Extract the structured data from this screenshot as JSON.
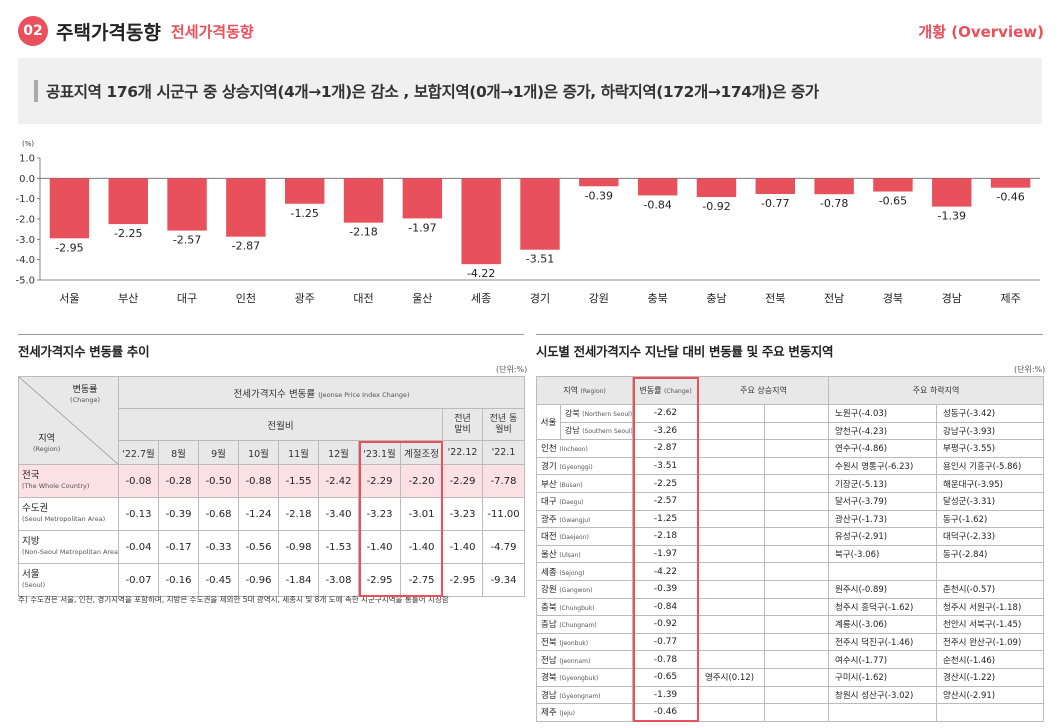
{
  "header": {
    "badge": "02",
    "title": "주택가격동향",
    "subtitle": "전세가격동향",
    "right": "개황 (Overview)"
  },
  "banner": {
    "text": "공표지역 176개 시군구 중 상승지역(4개→1개)은 감소 , 보합지역(0개→1개)은 증가, 하락지역(172개→174개)은 증가"
  },
  "chart_data": {
    "type": "bar",
    "ylabel": "(%)",
    "ylim": [
      -5.0,
      1.0
    ],
    "yticks": [
      "1.0",
      "0.0",
      "-1.0",
      "-2.0",
      "-3.0",
      "-4.0",
      "-5.0"
    ],
    "categories": [
      "서울",
      "부산",
      "대구",
      "인천",
      "광주",
      "대전",
      "울산",
      "세종",
      "경기",
      "강원",
      "충북",
      "충남",
      "전북",
      "전남",
      "경북",
      "경남",
      "제주"
    ],
    "values": [
      -2.95,
      -2.25,
      -2.57,
      -2.87,
      -1.25,
      -2.18,
      -1.97,
      -4.22,
      -3.51,
      -0.39,
      -0.84,
      -0.92,
      -0.77,
      -0.78,
      -0.65,
      -1.39,
      -0.46
    ],
    "labels": [
      "-2.95",
      "-2.25",
      "-2.57",
      "-2.87",
      "-1.25",
      "-2.18",
      "-1.97",
      "-4.22",
      "-3.51",
      "-0.39",
      "-0.84",
      "-0.92",
      "-0.77",
      "-0.78",
      "-0.65",
      "-1.39",
      "-0.46"
    ],
    "bar_color": "#e8505b",
    "grid": false
  },
  "left": {
    "title": "전세가격지수 변동률 추이",
    "unit": "(단위:%)",
    "corner_top": "변동률",
    "corner_top_en": "(Change)",
    "corner_bottom": "지역",
    "corner_bottom_en": "(Region)",
    "header_main": "전세가격지수 변동률",
    "header_main_en": "(Jeonse Price Index Change)",
    "header_prev_month": "전월비",
    "header_prev_year_end": "전년 말비",
    "header_yoy": "전년 동월비",
    "columns": [
      "'22.7월",
      "8월",
      "9월",
      "10월",
      "11월",
      "12월",
      "'23.1월",
      "계절조정",
      "'22.12",
      "'22.1"
    ],
    "rows": [
      {
        "name": "전국",
        "en": "(The Whole Country)",
        "values": [
          "-0.08",
          "-0.28",
          "-0.50",
          "-0.88",
          "-1.55",
          "-2.42",
          "-2.29",
          "-2.20",
          "-2.29",
          "-7.78"
        ]
      },
      {
        "name": "수도권",
        "en": "(Seoul Metropolitan Area)",
        "values": [
          "-0.13",
          "-0.39",
          "-0.68",
          "-1.24",
          "-2.18",
          "-3.40",
          "-3.23",
          "-3.01",
          "-3.23",
          "-11.00"
        ]
      },
      {
        "name": "지방",
        "en": "(Non-Seoul Metropolitan Area)",
        "values": [
          "-0.04",
          "-0.17",
          "-0.33",
          "-0.56",
          "-0.98",
          "-1.53",
          "-1.40",
          "-1.40",
          "-1.40",
          "-4.79"
        ]
      },
      {
        "name": "서울",
        "en": "(Seoul)",
        "values": [
          "-0.07",
          "-0.16",
          "-0.45",
          "-0.96",
          "-1.84",
          "-3.08",
          "-2.95",
          "-2.75",
          "-2.95",
          "-9.34"
        ]
      }
    ],
    "note": "주) 수도권은 서울, 인천, 경기지역을 포함하며, 지방은 수도권을 제외한 5대 광역시, 세종시 및 8개 도에 속한 시군구지역을 통틀어 지칭함"
  },
  "right": {
    "title": "시도별 전세가격지수 지난달 대비 변동률 및 주요 변동지역",
    "unit": "(단위:%)",
    "h_region": "지역",
    "h_region_en": "(Region)",
    "h_change": "변동률",
    "h_change_en": "(Change)",
    "h_up": "주요 상승지역",
    "h_down": "주요 하락지역",
    "seoul_label": "서울",
    "rows": [
      {
        "name": "강북",
        "en": "(Northern Seoul)",
        "change": "-2.62",
        "up1": "",
        "up2": "",
        "down1": "노원구(-4.03)",
        "down2": "성동구(-3.42)"
      },
      {
        "name": "강남",
        "en": "(Southern Seoul)",
        "change": "-3.26",
        "up1": "",
        "up2": "",
        "down1": "양천구(-4.23)",
        "down2": "강남구(-3.93)"
      },
      {
        "name": "인천",
        "en": "(Incheon)",
        "change": "-2.87",
        "up1": "",
        "up2": "",
        "down1": "연수구(-4.86)",
        "down2": "부평구(-3.55)"
      },
      {
        "name": "경기",
        "en": "(Gyeonggi)",
        "change": "-3.51",
        "up1": "",
        "up2": "",
        "down1": "수원시 영통구(-6.23)",
        "down2": "용인시 기흥구(-5.86)"
      },
      {
        "name": "부산",
        "en": "(Busan)",
        "change": "-2.25",
        "up1": "",
        "up2": "",
        "down1": "기장군(-5.13)",
        "down2": "해운대구(-3.95)"
      },
      {
        "name": "대구",
        "en": "(Daegu)",
        "change": "-2.57",
        "up1": "",
        "up2": "",
        "down1": "달서구(-3.79)",
        "down2": "달성군(-3.31)"
      },
      {
        "name": "광주",
        "en": "(Gwangju)",
        "change": "-1.25",
        "up1": "",
        "up2": "",
        "down1": "광산구(-1.73)",
        "down2": "동구(-1.62)"
      },
      {
        "name": "대전",
        "en": "(Daejeon)",
        "change": "-2.18",
        "up1": "",
        "up2": "",
        "down1": "유성구(-2.91)",
        "down2": "대덕구(-2.33)"
      },
      {
        "name": "울산",
        "en": "(Ulsan)",
        "change": "-1.97",
        "up1": "",
        "up2": "",
        "down1": "북구(-3.06)",
        "down2": "동구(-2.84)"
      },
      {
        "name": "세종",
        "en": "(Sejong)",
        "change": "-4.22",
        "up1": "",
        "up2": "",
        "down1": "",
        "down2": ""
      },
      {
        "name": "강원",
        "en": "(Gangwon)",
        "change": "-0.39",
        "up1": "",
        "up2": "",
        "down1": "원주시(-0.89)",
        "down2": "춘천시(-0.57)"
      },
      {
        "name": "충북",
        "en": "(Chungbuk)",
        "change": "-0.84",
        "up1": "",
        "up2": "",
        "down1": "청주시 흥덕구(-1.62)",
        "down2": "청주시 서원구(-1.18)"
      },
      {
        "name": "충남",
        "en": "(Chungnam)",
        "change": "-0.92",
        "up1": "",
        "up2": "",
        "down1": "계룡시(-3.06)",
        "down2": "천안시 서북구(-1.45)"
      },
      {
        "name": "전북",
        "en": "(Jeonbuk)",
        "change": "-0.77",
        "up1": "",
        "up2": "",
        "down1": "전주시 덕진구(-1.46)",
        "down2": "전주시 완산구(-1.09)"
      },
      {
        "name": "전남",
        "en": "(Jeonnam)",
        "change": "-0.78",
        "up1": "",
        "up2": "",
        "down1": "여수시(-1.77)",
        "down2": "순천시(-1.46)"
      },
      {
        "name": "경북",
        "en": "(Gyeongbuk)",
        "change": "-0.65",
        "up1": "영주시(0.12)",
        "up2": "",
        "down1": "구미시(-1.62)",
        "down2": "경산시(-1.22)"
      },
      {
        "name": "경남",
        "en": "(Gyeongnam)",
        "change": "-1.39",
        "up1": "",
        "up2": "",
        "down1": "창원시 성산구(-3.02)",
        "down2": "양산시(-2.91)"
      },
      {
        "name": "제주",
        "en": "(Jeju)",
        "change": "-0.46",
        "up1": "",
        "up2": "",
        "down1": "",
        "down2": ""
      }
    ]
  }
}
